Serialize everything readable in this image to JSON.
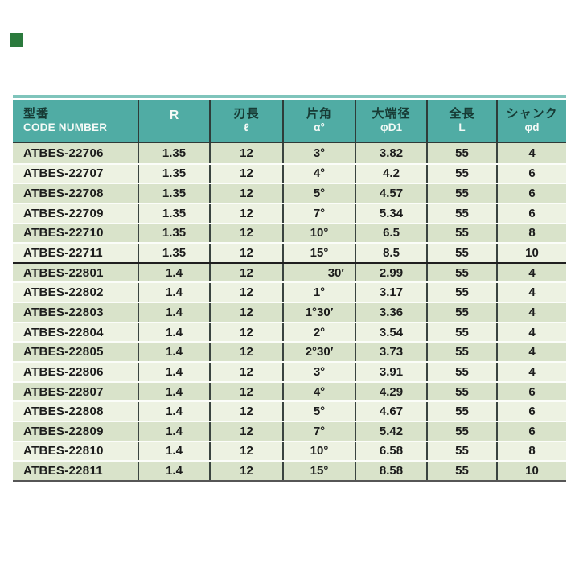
{
  "page": {
    "background": "#ffffff"
  },
  "corner_mark": {
    "color": "#2b7a3d"
  },
  "colors": {
    "header_bg": "#50aca4",
    "header_top_band": "#7fc4bb",
    "header_label_text": "#173b35",
    "header_symbol_text": "#f4faf7",
    "stripe_dark": "#d9e3ca",
    "stripe_light": "#edf2e2",
    "column_line": "#3a4440",
    "body_text": "#1c1c1c"
  },
  "table": {
    "header": {
      "col1": {
        "label": "型番",
        "sub": "CODE NUMBER"
      },
      "col2": {
        "symbol": "R"
      },
      "col3": {
        "label": "刃長",
        "symbol": "ℓ"
      },
      "col4": {
        "label": "片角",
        "symbol": "α°"
      },
      "col5": {
        "label": "大端径",
        "symbol": "φD1"
      },
      "col6": {
        "label": "全長",
        "symbol": "L"
      },
      "col7": {
        "label": "シャンク",
        "symbol": "φd"
      }
    },
    "rows": [
      {
        "code": "ATBES-22706",
        "r": "1.35",
        "edge": "12",
        "angle": "3°",
        "dia": "3.82",
        "len": "55",
        "shank": "4"
      },
      {
        "code": "ATBES-22707",
        "r": "1.35",
        "edge": "12",
        "angle": "4°",
        "dia": "4.2",
        "len": "55",
        "shank": "6"
      },
      {
        "code": "ATBES-22708",
        "r": "1.35",
        "edge": "12",
        "angle": "5°",
        "dia": "4.57",
        "len": "55",
        "shank": "6"
      },
      {
        "code": "ATBES-22709",
        "r": "1.35",
        "edge": "12",
        "angle": "7°",
        "dia": "5.34",
        "len": "55",
        "shank": "6"
      },
      {
        "code": "ATBES-22710",
        "r": "1.35",
        "edge": "12",
        "angle": "10°",
        "dia": "6.5",
        "len": "55",
        "shank": "8"
      },
      {
        "code": "ATBES-22711",
        "r": "1.35",
        "edge": "12",
        "angle": "15°",
        "dia": "8.5",
        "len": "55",
        "shank": "10"
      },
      {
        "code": "ATBES-22801",
        "r": "1.4",
        "edge": "12",
        "angle": "30′",
        "dia": "2.99",
        "len": "55",
        "shank": "4"
      },
      {
        "code": "ATBES-22802",
        "r": "1.4",
        "edge": "12",
        "angle": "1°",
        "dia": "3.17",
        "len": "55",
        "shank": "4"
      },
      {
        "code": "ATBES-22803",
        "r": "1.4",
        "edge": "12",
        "angle": "1°30′",
        "dia": "3.36",
        "len": "55",
        "shank": "4"
      },
      {
        "code": "ATBES-22804",
        "r": "1.4",
        "edge": "12",
        "angle": "2°",
        "dia": "3.54",
        "len": "55",
        "shank": "4"
      },
      {
        "code": "ATBES-22805",
        "r": "1.4",
        "edge": "12",
        "angle": "2°30′",
        "dia": "3.73",
        "len": "55",
        "shank": "4"
      },
      {
        "code": "ATBES-22806",
        "r": "1.4",
        "edge": "12",
        "angle": "3°",
        "dia": "3.91",
        "len": "55",
        "shank": "4"
      },
      {
        "code": "ATBES-22807",
        "r": "1.4",
        "edge": "12",
        "angle": "4°",
        "dia": "4.29",
        "len": "55",
        "shank": "6"
      },
      {
        "code": "ATBES-22808",
        "r": "1.4",
        "edge": "12",
        "angle": "5°",
        "dia": "4.67",
        "len": "55",
        "shank": "6"
      },
      {
        "code": "ATBES-22809",
        "r": "1.4",
        "edge": "12",
        "angle": "7°",
        "dia": "5.42",
        "len": "55",
        "shank": "6"
      },
      {
        "code": "ATBES-22810",
        "r": "1.4",
        "edge": "12",
        "angle": "10°",
        "dia": "6.58",
        "len": "55",
        "shank": "8"
      },
      {
        "code": "ATBES-22811",
        "r": "1.4",
        "edge": "12",
        "angle": "15°",
        "dia": "8.58",
        "len": "55",
        "shank": "10"
      }
    ]
  }
}
